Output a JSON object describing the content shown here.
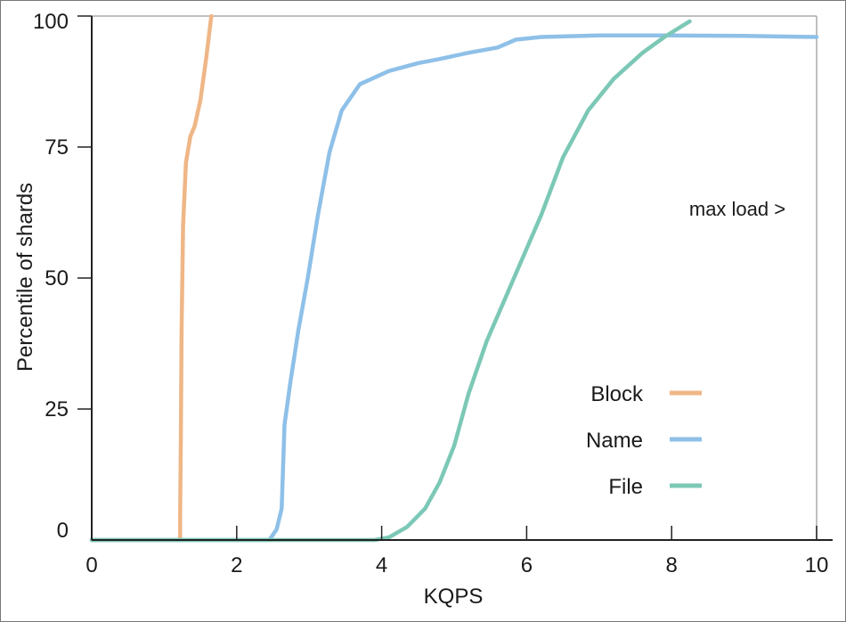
{
  "chart_data": {
    "type": "line",
    "title": "",
    "xlabel": "KQPS",
    "ylabel": "Percentile of shards",
    "xlim": [
      0,
      10
    ],
    "ylim": [
      0,
      100
    ],
    "x_ticks": [
      0,
      2,
      4,
      6,
      8,
      10
    ],
    "y_ticks": [
      0,
      25,
      50,
      75,
      100
    ],
    "grid": false,
    "legend_position": "bottom-right",
    "annotation": "max load >",
    "series": [
      {
        "name": "Block",
        "color": "#efb686",
        "points": [
          [
            0,
            0
          ],
          [
            1.22,
            0
          ],
          [
            1.22,
            5
          ],
          [
            1.23,
            20
          ],
          [
            1.24,
            40
          ],
          [
            1.26,
            60
          ],
          [
            1.3,
            72
          ],
          [
            1.36,
            77
          ],
          [
            1.42,
            79
          ],
          [
            1.5,
            84
          ],
          [
            1.58,
            92
          ],
          [
            1.65,
            100
          ]
        ]
      },
      {
        "name": "Name",
        "color": "#8ec0e8",
        "points": [
          [
            0,
            0
          ],
          [
            2.45,
            0
          ],
          [
            2.55,
            2
          ],
          [
            2.62,
            6
          ],
          [
            2.64,
            14
          ],
          [
            2.66,
            22
          ],
          [
            2.74,
            30
          ],
          [
            2.85,
            40
          ],
          [
            2.98,
            50
          ],
          [
            3.12,
            62
          ],
          [
            3.28,
            74
          ],
          [
            3.45,
            82
          ],
          [
            3.7,
            87
          ],
          [
            4.1,
            89.5
          ],
          [
            4.5,
            91
          ],
          [
            4.8,
            91.8
          ],
          [
            5.2,
            93
          ],
          [
            5.6,
            94
          ],
          [
            5.85,
            95.5
          ],
          [
            6.2,
            96
          ],
          [
            7.0,
            96.3
          ],
          [
            8.0,
            96.3
          ],
          [
            9.0,
            96.2
          ],
          [
            10.0,
            96
          ]
        ]
      },
      {
        "name": "File",
        "color": "#7cc8b6",
        "points": [
          [
            0,
            0
          ],
          [
            3.9,
            0
          ],
          [
            4.1,
            0.5
          ],
          [
            4.35,
            2.5
          ],
          [
            4.6,
            6
          ],
          [
            4.8,
            11
          ],
          [
            5.0,
            18
          ],
          [
            5.2,
            28
          ],
          [
            5.45,
            38
          ],
          [
            5.7,
            46
          ],
          [
            5.95,
            54
          ],
          [
            6.2,
            62
          ],
          [
            6.5,
            73
          ],
          [
            6.85,
            82
          ],
          [
            7.2,
            88
          ],
          [
            7.6,
            93
          ],
          [
            7.9,
            96
          ],
          [
            8.25,
            99
          ]
        ]
      }
    ]
  }
}
